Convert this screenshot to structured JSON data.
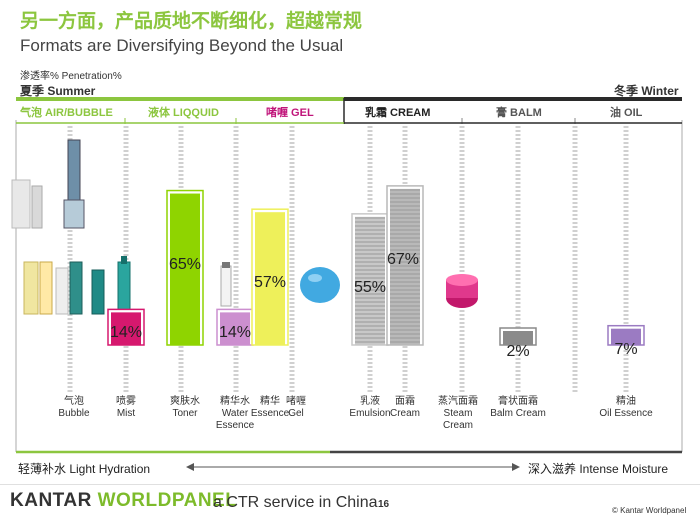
{
  "header": {
    "title_cn": "另一方面，产品质地不断细化，超越常规",
    "title_en": "Formats are Diversifying Beyond the Usual",
    "penetration_label": "渗透率% Penetration%",
    "season_left": "夏季 Summer",
    "season_right": "冬季 Winter"
  },
  "categories": [
    {
      "label": "气泡 AIR/BUBBLE",
      "color": "#8cc63f"
    },
    {
      "label": "液体 LIQQUID",
      "color": "#8cc63f"
    },
    {
      "label": "啫喱 GEL",
      "color": "#c0147a"
    },
    {
      "label": "乳霜 CREAM",
      "color": "#222222"
    },
    {
      "label": "膏 BALM",
      "color": "#555555"
    },
    {
      "label": "油 OIL",
      "color": "#555555"
    }
  ],
  "chart_data": {
    "type": "bar",
    "categories": [
      "Bubble",
      "Mist",
      "Toner",
      "Water Essence",
      "Essence",
      "Gel",
      "Emulsion",
      "Cream",
      "Steam Cream",
      "Balm Cream",
      "Oil Essence"
    ],
    "x_labels": [
      {
        "cn": "气泡",
        "en": "Bubble"
      },
      {
        "cn": "喷雾",
        "en": "Mist"
      },
      {
        "cn": "爽肤水",
        "en": "Toner"
      },
      {
        "cn": "精华水",
        "en": "Water Essence"
      },
      {
        "cn": "精华",
        "en": "Essence"
      },
      {
        "cn": "啫喱",
        "en": "Gel"
      },
      {
        "cn": "乳液",
        "en": "Emulsion"
      },
      {
        "cn": "面霜",
        "en": "Cream"
      },
      {
        "cn": "蒸汽面霜",
        "en": "Steam Cream"
      },
      {
        "cn": "膏状面霜",
        "en": "Balm Cream"
      },
      {
        "cn": "精油",
        "en": "Oil Essence"
      }
    ],
    "bars": [
      {
        "category": "Mist",
        "value": 14,
        "label": "14%",
        "color": "#d6186e"
      },
      {
        "category": "Toner",
        "value": 65,
        "label": "65%",
        "color": "#8fd400"
      },
      {
        "category": "Water Essence",
        "value": 14,
        "label": "14%",
        "color": "#cc8fcf"
      },
      {
        "category": "Essence",
        "value": 57,
        "label": "57%",
        "color": "#eef05a"
      },
      {
        "category": "Emulsion",
        "value": 55,
        "label": "55%",
        "color": "#c8c8c8"
      },
      {
        "category": "Cream",
        "value": 67,
        "label": "67%",
        "color": "#b9b9b9"
      },
      {
        "category": "Balm Cream",
        "value": 2,
        "label": "2%",
        "color": "#8a8a8a"
      },
      {
        "category": "Oil Essence",
        "value": 7,
        "label": "7%",
        "color": "#9b7bc2"
      }
    ],
    "ylim": [
      0,
      100
    ],
    "ylabel": "渗透率% Penetration%"
  },
  "footer": {
    "left_label": "轻薄补水 Light Hydration",
    "right_label": "深入滋养 Intense Moisture",
    "brand_a": "KANTAR",
    "brand_b": "WORLDPANEL",
    "tagline": "a CTR service in China",
    "page": "16",
    "copyright": "© Kantar Worldpanel"
  }
}
